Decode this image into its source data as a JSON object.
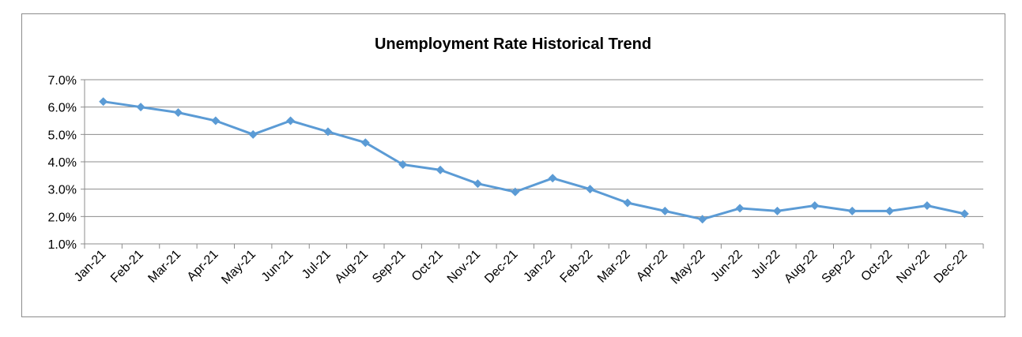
{
  "chart_data": {
    "type": "line",
    "title": "Unemployment Rate Historical Trend",
    "xlabel": "",
    "ylabel": "",
    "ylim": [
      1.0,
      7.0
    ],
    "yticks": [
      "1.0%",
      "2.0%",
      "3.0%",
      "4.0%",
      "5.0%",
      "6.0%",
      "7.0%"
    ],
    "grid": true,
    "legend": "none",
    "categories": [
      "Jan-21",
      "Feb-21",
      "Mar-21",
      "Apr-21",
      "May-21",
      "Jun-21",
      "Jul-21",
      "Aug-21",
      "Sep-21",
      "Oct-21",
      "Nov-21",
      "Dec-21",
      "Jan-22",
      "Feb-22",
      "Mar-22",
      "Apr-22",
      "May-22",
      "Jun-22",
      "Jul-22",
      "Aug-22",
      "Sep-22",
      "Oct-22",
      "Nov-22",
      "Dec-22"
    ],
    "series": [
      {
        "color": "#5b9bd5",
        "values": [
          6.2,
          6.0,
          5.8,
          5.5,
          5.0,
          5.5,
          5.1,
          4.7,
          3.9,
          3.7,
          3.2,
          2.9,
          3.4,
          3.0,
          2.5,
          2.2,
          1.9,
          2.3,
          2.2,
          2.4,
          2.2,
          2.2,
          2.4,
          2.1
        ]
      }
    ]
  }
}
